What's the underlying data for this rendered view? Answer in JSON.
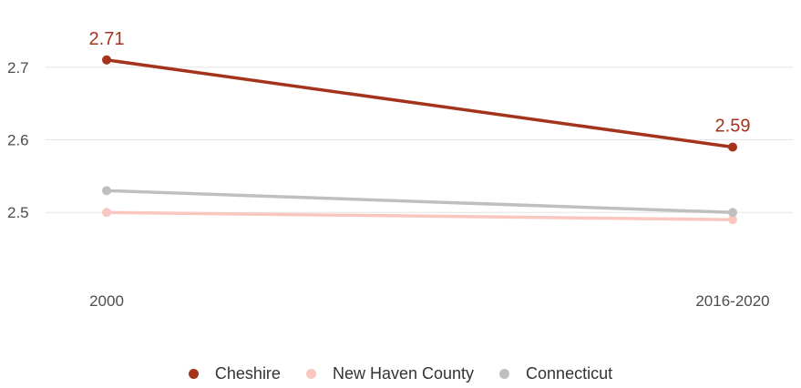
{
  "chart_data": {
    "type": "line",
    "title": "",
    "xlabel": "",
    "ylabel": "",
    "categories": [
      "2000",
      "2016-2020"
    ],
    "y_ticks": [
      "2.5",
      "2.6",
      "2.7"
    ],
    "ylim": [
      2.41,
      2.78
    ],
    "grid": "horizontal",
    "legend_position": "bottom",
    "series": [
      {
        "name": "Cheshire",
        "values": [
          2.71,
          2.59
        ],
        "color": "#a4331c",
        "labels": [
          "2.71",
          "2.59"
        ]
      },
      {
        "name": "New Haven County",
        "values": [
          2.5,
          2.49
        ],
        "color": "#f9c7bf"
      },
      {
        "name": "Connecticut",
        "values": [
          2.53,
          2.5
        ],
        "color": "#bfbfbf"
      }
    ]
  }
}
